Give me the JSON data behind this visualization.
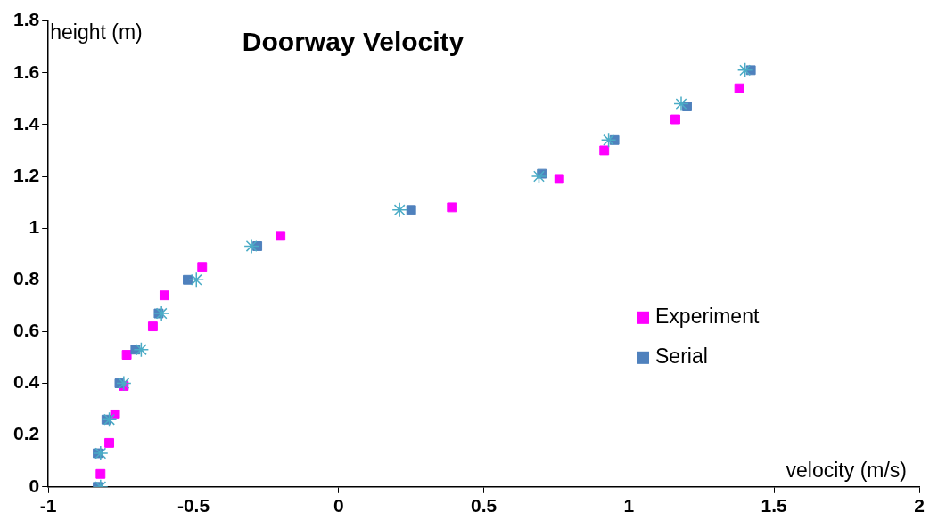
{
  "chart_data": {
    "type": "scatter",
    "title": "Doorway Velocity",
    "xlabel": "velocity (m/s)",
    "ylabel": "height (m)",
    "xlim": [
      -1,
      2
    ],
    "xticks": [
      -1,
      -0.5,
      0,
      0.5,
      1,
      1.5,
      2
    ],
    "ylim": [
      0,
      1.8
    ],
    "yticks": [
      0,
      0.2,
      0.4,
      0.6,
      0.8,
      1,
      1.2,
      1.4,
      1.6,
      1.8
    ],
    "grid": false,
    "legend": "bottom right",
    "series": [
      {
        "name": "Experiment",
        "color": "#ff00ff",
        "marker": "square",
        "x": [
          -0.82,
          -0.79,
          -0.77,
          -0.74,
          -0.73,
          -0.64,
          -0.6,
          -0.47,
          -0.2,
          0.39,
          0.76,
          0.915,
          1.16,
          1.38
        ],
        "values": [
          0.05,
          0.17,
          0.28,
          0.39,
          0.51,
          0.62,
          0.74,
          0.85,
          0.97,
          1.08,
          1.19,
          1.3,
          1.42,
          1.54
        ]
      },
      {
        "name": "Serial",
        "color": "#4f81bd",
        "marker": "square",
        "x": [
          -0.83,
          -0.83,
          -0.8,
          -0.755,
          -0.7,
          -0.62,
          -0.52,
          -0.28,
          0.25,
          0.7,
          0.95,
          1.2,
          1.42
        ],
        "values": [
          0,
          0.13,
          0.26,
          0.4,
          0.53,
          0.67,
          0.8,
          0.93,
          1.07,
          1.21,
          1.34,
          1.47,
          1.61
        ]
      },
      {
        "color": "#4bacc6",
        "marker": "cross",
        "x": [
          -0.82,
          -0.82,
          -0.79,
          -0.74,
          -0.68,
          -0.61,
          -0.49,
          -0.3,
          0.21,
          0.69,
          0.93,
          1.18,
          1.4
        ],
        "values": [
          0,
          0.13,
          0.26,
          0.4,
          0.53,
          0.67,
          0.8,
          0.93,
          1.07,
          1.2,
          1.34,
          1.48,
          1.61
        ]
      }
    ]
  }
}
